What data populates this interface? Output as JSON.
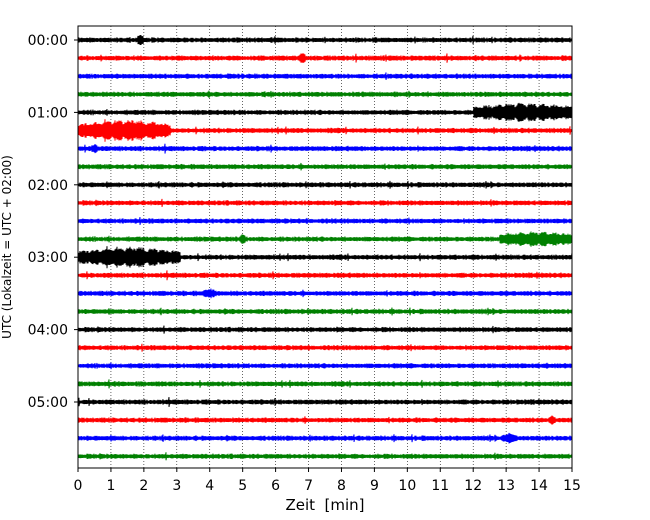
{
  "chart_data": {
    "type": "line",
    "title": "",
    "xlabel": "Zeit  [min]",
    "ylabel": "UTC (Lokalzeit = UTC + 02:00)",
    "xlim": [
      0,
      15
    ],
    "x_ticks": [
      "0",
      "1",
      "2",
      "3",
      "4",
      "5",
      "6",
      "7",
      "8",
      "9",
      "10",
      "11",
      "12",
      "13",
      "14",
      "15"
    ],
    "y_tick_labels": [
      "00:00",
      "01:00",
      "02:00",
      "03:00",
      "04:00",
      "05:00"
    ],
    "y_tick_rows": [
      0,
      4,
      8,
      12,
      16,
      20
    ],
    "row_interval_minutes": 15,
    "row_count": 24,
    "x_grid": true,
    "color_cycle": [
      "#000000",
      "#ff0000",
      "#0000ff",
      "#008000"
    ],
    "series_note": "seismogram traces, one per 15-minute row; colors cycle black, red, blue, green",
    "events": [
      {
        "row": 0,
        "x_start": 1.8,
        "x_end": 2.0,
        "level": 0.6
      },
      {
        "row": 1,
        "x_start": 6.7,
        "x_end": 6.9,
        "level": 0.6
      },
      {
        "row": 4,
        "x_start": 12.0,
        "x_end": 15.0,
        "level": 1.4
      },
      {
        "row": 5,
        "x_start": 0.0,
        "x_end": 2.8,
        "level": 1.6
      },
      {
        "row": 6,
        "x_start": 0.4,
        "x_end": 0.6,
        "level": 0.5
      },
      {
        "row": 11,
        "x_start": 4.9,
        "x_end": 5.1,
        "level": 0.5
      },
      {
        "row": 11,
        "x_start": 12.8,
        "x_end": 15.0,
        "level": 1.0
      },
      {
        "row": 12,
        "x_start": 0.0,
        "x_end": 3.1,
        "level": 1.5
      },
      {
        "row": 14,
        "x_start": 3.8,
        "x_end": 4.2,
        "level": 0.5
      },
      {
        "row": 21,
        "x_start": 14.3,
        "x_end": 14.5,
        "level": 0.5
      },
      {
        "row": 22,
        "x_start": 12.9,
        "x_end": 13.3,
        "level": 0.6
      }
    ]
  }
}
